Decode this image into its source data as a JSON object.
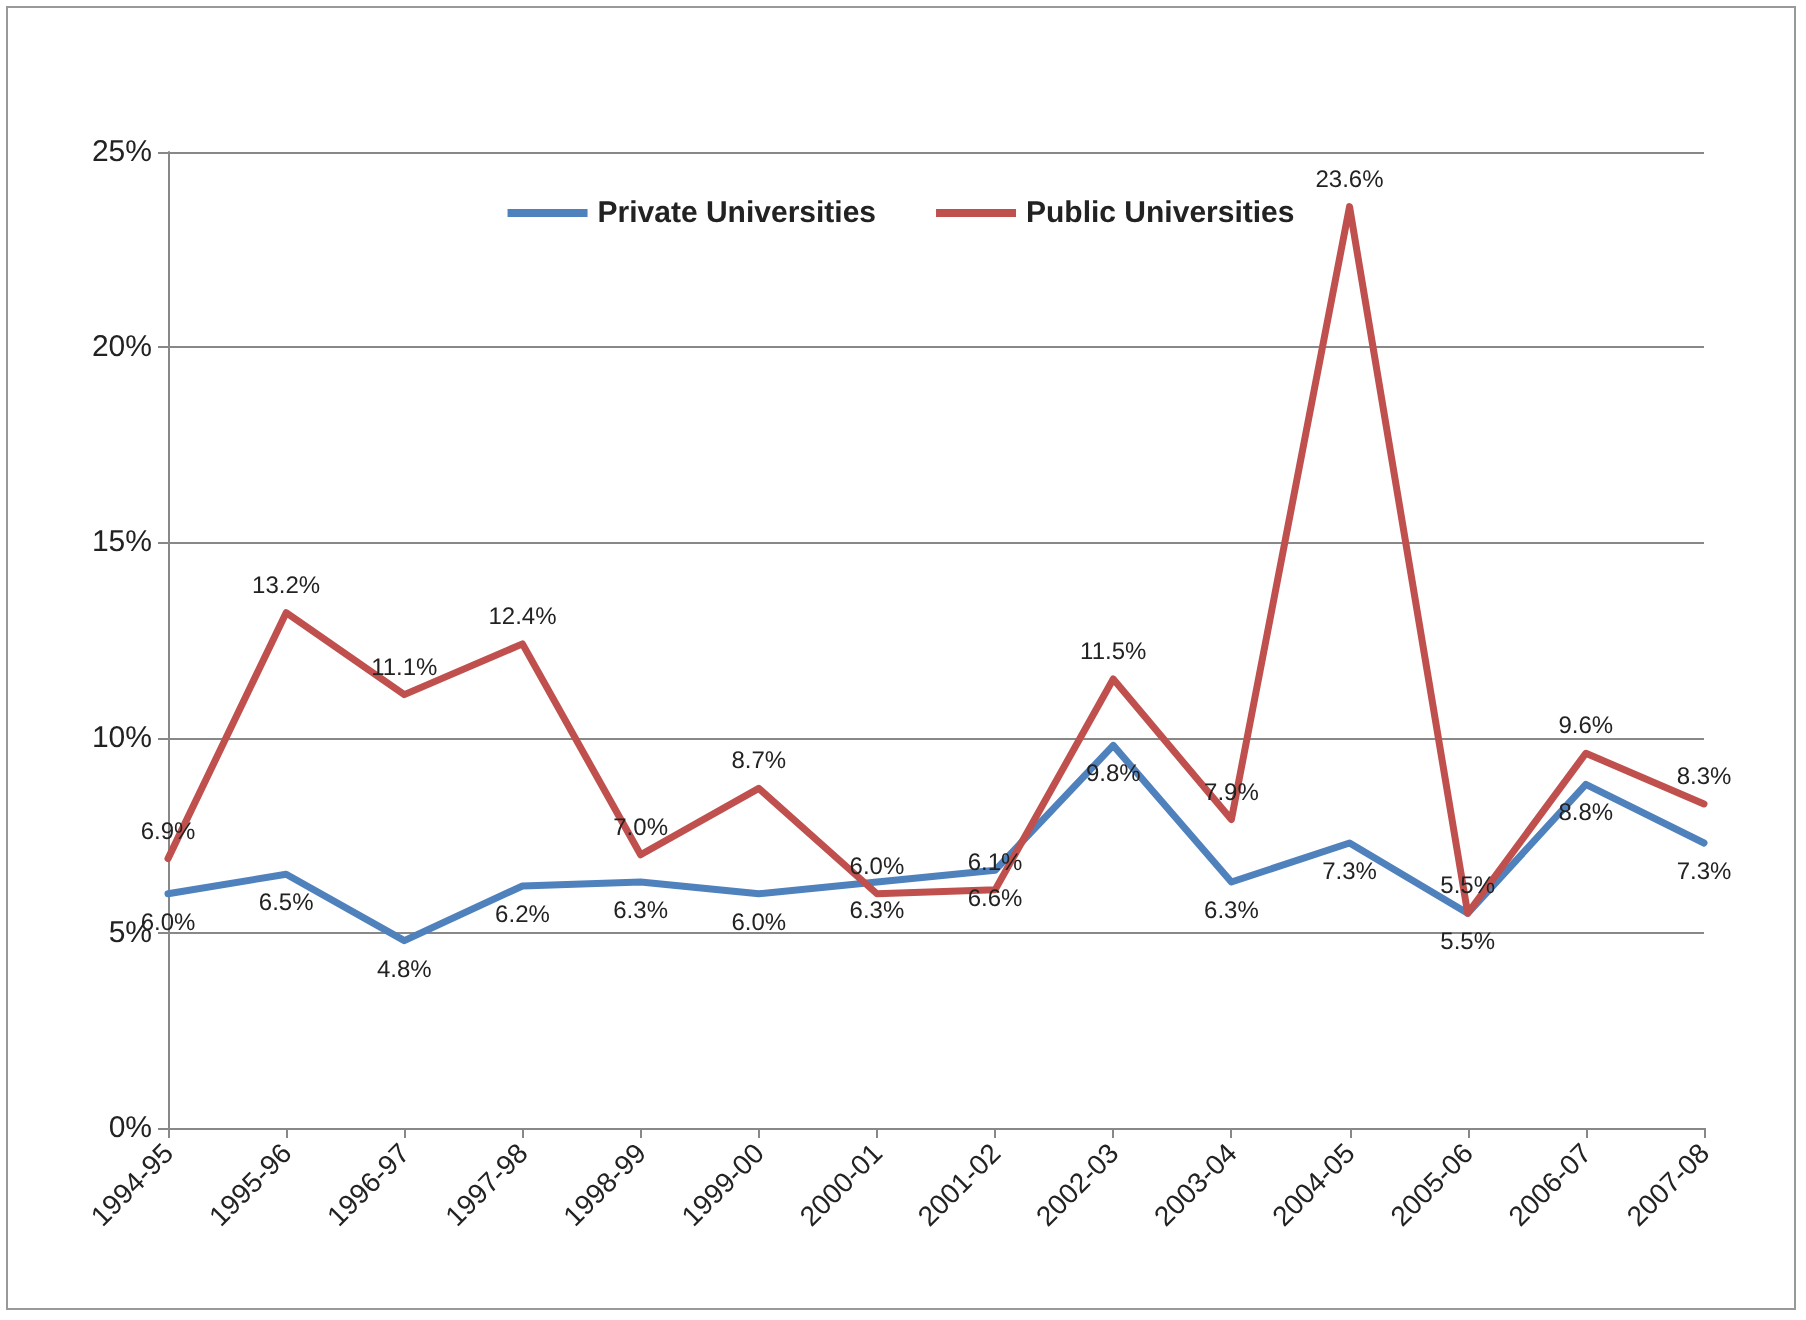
{
  "chart_data": {
    "type": "line",
    "categories": [
      "1994-95",
      "1995-96",
      "1996-97",
      "1997-98",
      "1998-99",
      "1999-00",
      "2000-01",
      "2001-02",
      "2002-03",
      "2003-04",
      "2004-05",
      "2005-06",
      "2006-07",
      "2007-08"
    ],
    "series": [
      {
        "name": "Private Universities",
        "color": "#4f81bd",
        "values": [
          6.0,
          6.5,
          4.8,
          6.2,
          6.3,
          6.0,
          6.3,
          6.6,
          9.8,
          6.3,
          7.3,
          5.5,
          8.8,
          7.3
        ],
        "value_labels": [
          "6.0%",
          "6.5%",
          "4.8%",
          "6.2%",
          "6.3%",
          "6.0%",
          "6.3%",
          "6.6%",
          "9.8%",
          "6.3%",
          "7.3%",
          "5.5%",
          "8.8%",
          "7.3%"
        ]
      },
      {
        "name": "Public Universities",
        "color": "#c0504d",
        "values": [
          6.9,
          13.2,
          11.1,
          12.4,
          7.0,
          8.7,
          6.0,
          6.1,
          11.5,
          7.9,
          23.6,
          5.5,
          9.6,
          8.3
        ],
        "value_labels": [
          "6.9%",
          "13.2%",
          "11.1%",
          "12.4%",
          "7.0%",
          "8.7%",
          "6.0%",
          "6.1%",
          "11.5%",
          "7.9%",
          "23.6%",
          "5.5%",
          "9.6%",
          "8.3%"
        ]
      }
    ],
    "ylim": [
      0,
      25
    ],
    "yticks": [
      {
        "value": 0,
        "label": "0%"
      },
      {
        "value": 5,
        "label": "5%"
      },
      {
        "value": 10,
        "label": "10%"
      },
      {
        "value": 15,
        "label": "15%"
      },
      {
        "value": 20,
        "label": "20%"
      },
      {
        "value": 25,
        "label": "25%"
      }
    ],
    "grid": "y",
    "legend": "top",
    "marker": "none",
    "line_style": "solid"
  }
}
